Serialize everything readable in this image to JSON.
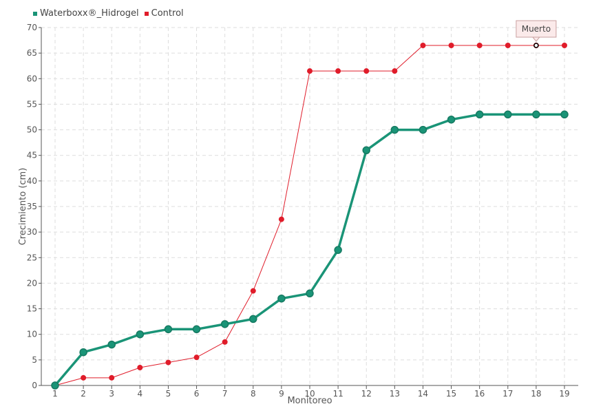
{
  "chart_data": {
    "type": "line",
    "title": "",
    "xlabel": "Monitoreo",
    "ylabel": "Crecimiento (cm)",
    "x": [
      1,
      2,
      3,
      4,
      5,
      6,
      7,
      8,
      9,
      10,
      11,
      12,
      13,
      14,
      15,
      16,
      17,
      18,
      19
    ],
    "ylim": [
      0,
      70
    ],
    "yticks": [
      0,
      5,
      10,
      15,
      20,
      25,
      30,
      35,
      40,
      45,
      50,
      55,
      60,
      65,
      70
    ],
    "grid": true,
    "legend_position": "top-left",
    "series": [
      {
        "name": "Waterboxx®_Hidrogel",
        "color": "#1a9477",
        "values": [
          0,
          6.5,
          8,
          10,
          11,
          11,
          12,
          13,
          17,
          18,
          26.5,
          46,
          50,
          50,
          52,
          53,
          53,
          53,
          53
        ]
      },
      {
        "name": "Control",
        "color": "#e01c2a",
        "values": [
          0,
          1.5,
          1.5,
          3.5,
          4.5,
          5.5,
          8.5,
          18.5,
          32.5,
          61.5,
          61.5,
          61.5,
          61.5,
          66.5,
          66.5,
          66.5,
          66.5,
          66.5,
          66.5
        ]
      }
    ],
    "annotations": [
      {
        "text": "Muerto",
        "series": 1,
        "x": 18,
        "y": 66.5
      }
    ]
  }
}
